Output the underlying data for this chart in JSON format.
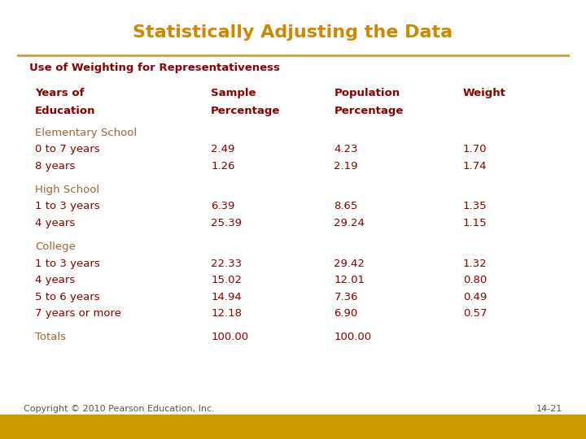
{
  "title": "Statistically Adjusting the Data",
  "title_color": "#CC8800",
  "subtitle": "Use of Weighting for Representativeness",
  "subtitle_color": "#8B0000",
  "header_color": "#8B0000",
  "data_color": "#8B0000",
  "category_color": "#996633",
  "line_color": "#CC9944",
  "footer_left": "Copyright © 2010 Pearson Education, Inc.",
  "footer_right": "14-21",
  "footer_text_color": "#555555",
  "bg_color": "#FFFFFF",
  "footer_bg": "#CC9900",
  "headers": [
    "Years of\nEducation",
    "Sample\nPercentage",
    "Population\nPercentage",
    "Weight"
  ],
  "sections": [
    {
      "category": "Elementary School",
      "rows": [
        [
          "0 to 7 years",
          "2.49",
          "4.23",
          "1.70"
        ],
        [
          "8 years",
          "1.26",
          "2.19",
          "1.74"
        ]
      ]
    },
    {
      "category": "High School",
      "rows": [
        [
          "1 to 3 years",
          "6.39",
          "8.65",
          "1.35"
        ],
        [
          "4 years",
          "25.39",
          "29.24",
          "1.15"
        ]
      ]
    },
    {
      "category": "College",
      "rows": [
        [
          "1 to 3 years",
          "22.33",
          "29.42",
          "1.32"
        ],
        [
          "4 years",
          "15.02",
          "12.01",
          "0.80"
        ],
        [
          "5 to 6 years",
          "14.94",
          "7.36",
          "0.49"
        ],
        [
          "7 years or more",
          "12.18",
          "6.90",
          "0.57"
        ]
      ]
    },
    {
      "category": "Totals",
      "rows": [
        [
          "",
          "100.00",
          "100.00",
          ""
        ]
      ]
    }
  ]
}
